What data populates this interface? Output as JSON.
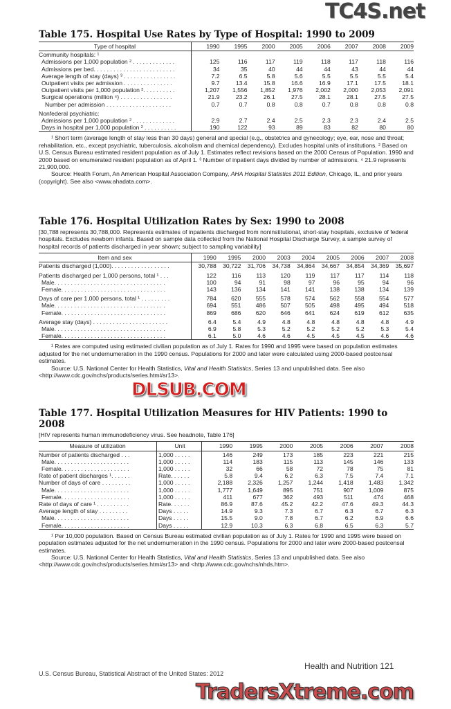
{
  "t175": {
    "title": "Table 175. Hospital Use Rates by Type of Hospital: 1990 to 2009",
    "cols": [
      "Type of hospital",
      "1990",
      "1995",
      "2000",
      "2005",
      "2006",
      "2007",
      "2008",
      "2009"
    ],
    "rows": [
      {
        "label": "Community hospitals: ¹",
        "ind": 0,
        "v": []
      },
      {
        "label": "Admissions per 1,000 population ² . . . . . . . . . . . . .",
        "ind": 1,
        "v": [
          "125",
          "116",
          "117",
          "119",
          "118",
          "117",
          "118",
          "116"
        ]
      },
      {
        "label": "Admissions per bed. . . . . . . . . . . . . . . . . . . . . . . . .",
        "ind": 1,
        "v": [
          "34",
          "35",
          "40",
          "44",
          "44",
          "43",
          "44",
          "44"
        ]
      },
      {
        "label": "Average length of stay (days) ³ . . . . . . . . . . . . . . . .",
        "ind": 1,
        "v": [
          "7.2",
          "6.5",
          "5.8",
          "5.6",
          "5.5",
          "5.5",
          "5.5",
          "5.4"
        ]
      },
      {
        "label": "Outpatient visits per admission . . . . . . . . . . . . . . .",
        "ind": 1,
        "v": [
          "9.7",
          "13.4",
          "15.8",
          "16.6",
          "16.9",
          "17.1",
          "17.5",
          "18.1"
        ]
      },
      {
        "label": "Outpatient visits per 1,000 population ². . . . . . . . . .",
        "ind": 1,
        "v": [
          "1,207",
          "1,556",
          "1,852",
          "1,976",
          "2,002",
          "2,000",
          "2,053",
          "2,091"
        ]
      },
      {
        "label": "Surgical operations (million ⁴) . . . . . . . . . . . . . . . .",
        "ind": 1,
        "v": [
          "21.9",
          "23.2",
          "26.1",
          "27.5",
          "28.1",
          "28.1",
          "27.5",
          "27.5"
        ]
      },
      {
        "label": "Number per admission . . . . . . . . . . . . . . . . . . . .",
        "ind": 2,
        "v": [
          "0.7",
          "0.7",
          "0.8",
          "0.8",
          "0.7",
          "0.8",
          "0.8",
          "0.8"
        ]
      },
      {
        "label": "Nonfederal psychiatric:",
        "ind": 0,
        "gap": true,
        "v": []
      },
      {
        "label": "Admissions per 1,000 population ² . . . . . . . . . . . . .",
        "ind": 1,
        "v": [
          "2.9",
          "2.7",
          "2.4",
          "2.5",
          "2.3",
          "2.3",
          "2.4",
          "2.5"
        ]
      },
      {
        "label": "Days in hospital per 1,000 population ² . . . . . . . . . .",
        "ind": 1,
        "v": [
          "190",
          "122",
          "93",
          "89",
          "83",
          "82",
          "80",
          "80"
        ]
      }
    ],
    "footnote": "¹ Short term (average length of stay less than 30 days) general and special (e.g., obstetrics and gynecology; eye, ear, nose and throat; rehabilitation, etc., except psychiatric, tuberculosis, alcoholism and chemical dependency). Excludes hospital units of institutions. ² Based on U.S. Census Bureau estimated resident population as of July 1. Estimates reflect revisions based on the 2000 Census of Population. 1990 and 2000 based on enumerated resident population as of April 1. ³ Number of inpatient days divided by number of admissions. ⁴ 21.9 represents 21,900,000.",
    "source_pre": "Source: Health Forum, An American Hospital Association Company, ",
    "source_italic": "AHA Hospital Statistics 2011 Edition",
    "source_post": ", Chicago, IL, and prior years (copyright). See also <www.ahadata.com>."
  },
  "t176": {
    "title": "Table 176. Hospital Utilization Rates by Sex: 1990 to 2008",
    "headnote": "[30,788 represents 30,788,000. Represents estimates of inpatients discharged from noninstitutional, short-stay hospitals, exclusive of federal hospitals. Excludes newborn infants. Based on sample data collected from the National Hospital Discharge Survey, a sample survey of hospital records of patients discharged in year shown; subject to sampling variability]",
    "cols": [
      "Item and sex",
      "1990",
      "1995",
      "2000",
      "2003",
      "2004",
      "2005",
      "2006",
      "2007",
      "2008"
    ],
    "rows": [
      {
        "label": "Patients discharged (1,000). . . . . . . . . . . . . . . . . .",
        "ind": 0,
        "v": [
          "30,788",
          "30,722",
          "31,706",
          "34,738",
          "34,864",
          "34,667",
          "34,854",
          "34,369",
          "35,697"
        ]
      },
      {
        "label": "Patients discharged per 1,000 persons, total ¹ . . .",
        "ind": 0,
        "gap": true,
        "v": [
          "122",
          "116",
          "113",
          "120",
          "119",
          "117",
          "117",
          "114",
          "118"
        ]
      },
      {
        "label": "Male. . . . . . . . . . . . . . . . . . . . . . . . . . . . . . . . . .",
        "ind": 1,
        "v": [
          "100",
          "94",
          "91",
          "98",
          "97",
          "96",
          "95",
          "94",
          "96"
        ]
      },
      {
        "label": "Female. . . . . . . . . . . . . . . . . . . . . . . . . . . . . . . .",
        "ind": 1,
        "v": [
          "143",
          "136",
          "134",
          "141",
          "141",
          "138",
          "138",
          "134",
          "139"
        ]
      },
      {
        "label": "Days of care per 1,000 persons, total ¹ . . . . . . . . .",
        "ind": 0,
        "gap": true,
        "v": [
          "784",
          "620",
          "555",
          "578",
          "574",
          "562",
          "558",
          "554",
          "577"
        ]
      },
      {
        "label": "Male. . . . . . . . . . . . . . . . . . . . . . . . . . . . . . . . . .",
        "ind": 1,
        "v": [
          "694",
          "551",
          "486",
          "507",
          "505",
          "498",
          "495",
          "494",
          "518"
        ]
      },
      {
        "label": "Female. . . . . . . . . . . . . . . . . . . . . . . . . . . . . . . .",
        "ind": 1,
        "v": [
          "869",
          "686",
          "620",
          "646",
          "641",
          "624",
          "619",
          "612",
          "635"
        ]
      },
      {
        "label": "Average stay (days) . . . . . . . . . . . . . . . . . . . . . . .",
        "ind": 0,
        "gap": true,
        "v": [
          "6.4",
          "5.4",
          "4.9",
          "4.8",
          "4.8",
          "4.8",
          "4.8",
          "4.8",
          "4.9"
        ]
      },
      {
        "label": "Male. . . . . . . . . . . . . . . . . . . . . . . . . . . . . . . . . .",
        "ind": 1,
        "v": [
          "6.9",
          "5.8",
          "5.3",
          "5.2",
          "5.2",
          "5.2",
          "5.2",
          "5.3",
          "5.4"
        ]
      },
      {
        "label": "Female. . . . . . . . . . . . . . . . . . . . . . . . . . . . . . . .",
        "ind": 1,
        "v": [
          "6.1",
          "5.0",
          "4.6",
          "4.6",
          "4.5",
          "4.5",
          "4.5",
          "4.6",
          "4.6"
        ]
      }
    ],
    "footnote": "¹ Rates are computed using estimated civilian population as of July 1. Rates for 1990 and 1995 were based on population estimates adjusted for the net undernumeration in the 1990 census. Populations for 2000 and later were calculated using 2000-based postcensal estimates.",
    "source_pre": "Source: U.S. National Center for Health Statistics, ",
    "source_italic": "Vital and Health Statistics",
    "source_post": ", Series 13 and unpublished data. See also <http://www.cdc.gov/nchs/products/series.htm#sr13>."
  },
  "t177": {
    "title": "Table 177. Hospital Utilization Measures for HIV Patients: 1990 to 2008",
    "headnote": "[HIV represents human immunodeficiency virus. See headnote, Table 176]",
    "cols": [
      "Measure of utilization",
      "Unit",
      "1990",
      "1995",
      "2000",
      "2005",
      "2006",
      "2007",
      "2008"
    ],
    "rows": [
      {
        "label": "Number of patients discharged . . .",
        "unit": "1,000 . . . . .",
        "ind": 0,
        "v": [
          "146",
          "249",
          "173",
          "185",
          "223",
          "221",
          "215"
        ]
      },
      {
        "label": "Male. . . . . . . . . . . . . . . . . . . . . . .",
        "unit": "1,000 . . . . .",
        "ind": 1,
        "v": [
          "114",
          "183",
          "115",
          "113",
          "145",
          "146",
          "133"
        ]
      },
      {
        "label": "Female. . . . . . . . . . . . . . . . . . . . .",
        "unit": "1,000 . . . . .",
        "ind": 1,
        "v": [
          "32",
          "66",
          "58",
          "72",
          "78",
          "75",
          "81"
        ]
      },
      {
        "label": "Rate of patient discharges ¹. . . . . .",
        "unit": "Rate. . . . . .",
        "ind": 0,
        "v": [
          "5.8",
          "9.4",
          "6.2",
          "6.3",
          "7.5",
          "7.4",
          "7.1"
        ]
      },
      {
        "label": "Number of days of care . . . . . . . . .",
        "unit": "1,000 . . . . .",
        "ind": 0,
        "v": [
          "2,188",
          "2,326",
          "1,257",
          "1,244",
          "1,418",
          "1,483",
          "1,342"
        ]
      },
      {
        "label": "Male. . . . . . . . . . . . . . . . . . . . . . .",
        "unit": "1,000 . . . . .",
        "ind": 1,
        "v": [
          "1,777",
          "1,649",
          "895",
          "751",
          "907",
          "1,009",
          "875"
        ]
      },
      {
        "label": "Female. . . . . . . . . . . . . . . . . . . . .",
        "unit": "1,000 . . . . .",
        "ind": 1,
        "v": [
          "411",
          "677",
          "362",
          "493",
          "511",
          "474",
          "468"
        ]
      },
      {
        "label": "Rate of days of care ¹ . . . . . . . . . .",
        "unit": "Rate. . . . . .",
        "ind": 0,
        "v": [
          "86.9",
          "87.6",
          "45.2",
          "42.2",
          "47.6",
          "49.3",
          "44.3"
        ]
      },
      {
        "label": "Average length of stay  . . . . . . . . .",
        "unit": "Days  . . . . .",
        "ind": 0,
        "v": [
          "14.9",
          "9.3",
          "7.3",
          "6.7",
          "6.3",
          "6.7",
          "6.3"
        ]
      },
      {
        "label": "Male. . . . . . . . . . . . . . . . . . . . . . .",
        "unit": "Days  . . . . .",
        "ind": 1,
        "v": [
          "15.5",
          "9.0",
          "7.8",
          "6.7",
          "6.2",
          "6.9",
          "6.6"
        ]
      },
      {
        "label": "Female. . . . . . . . . . . . . . . . . . . . .",
        "unit": "Days  . . . . .",
        "ind": 1,
        "v": [
          "12.9",
          "10.3",
          "6.3",
          "6.8",
          "6.5",
          "6.3",
          "5.7"
        ]
      }
    ],
    "footnote": "¹ Per 10,000 population. Based on Census Bureau estimated civilian population as of July 1. Rates for 1990 and 1995 were based on population estimates adjusted for the net undernumeration in the 1990 census. Populations for 2000 and later were 2000-based postcensal estimates.",
    "source_pre": "Source: U.S. National Center for Health Statistics, ",
    "source_italic": "Vital and Health Statistics",
    "source_post": ", Series 13 and unpublished data. See also <http://www.cdc.gov/nchs/products/series.htm#sr13> and <http://www.cdc.gov/nchs/nhds.htm>."
  },
  "footer": {
    "section": "Health and Nutrition  121",
    "publication": "U.S. Census Bureau, Statistical Abstract of the United States: 2012"
  },
  "watermarks": {
    "top": "TC4S.net",
    "middle": "DLSUB.COM",
    "bottom": "TradersXtreme.com"
  }
}
